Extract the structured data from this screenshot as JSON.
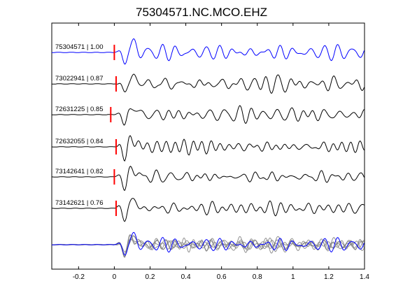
{
  "chart_data": {
    "type": "line",
    "title": "75304571.NC.MCO.EHZ",
    "xlabel": "",
    "ylabel": "",
    "xlim": [
      -0.35,
      1.4
    ],
    "xticks": [
      -0.2,
      0,
      0.2,
      0.4,
      0.6,
      0.8,
      1,
      1.2,
      1.4
    ],
    "xtick_labels": [
      "-0.2",
      "0",
      "0.2",
      "0.4",
      "0.6",
      "0.8",
      "1",
      "1.2",
      "1.4"
    ],
    "grid": false,
    "legend": "none",
    "colors": {
      "reference": "#0000ff",
      "trace": "#000000",
      "pick": "#ff0000",
      "overlay": "#808080"
    },
    "traces": [
      {
        "label": "75304571 | 1.00",
        "pick_time": 0.0,
        "reference": true
      },
      {
        "label": "73022941 | 0.87",
        "pick_time": 0.01
      },
      {
        "label": "72631225 | 0.85",
        "pick_time": -0.02
      },
      {
        "label": "72632055 | 0.84",
        "pick_time": 0.01
      },
      {
        "label": "73142641 | 0.82",
        "pick_time": 0.0
      },
      {
        "label": "73142621 | 0.76",
        "pick_time": 0.01
      }
    ],
    "stack": {
      "description_visible": false
    }
  }
}
